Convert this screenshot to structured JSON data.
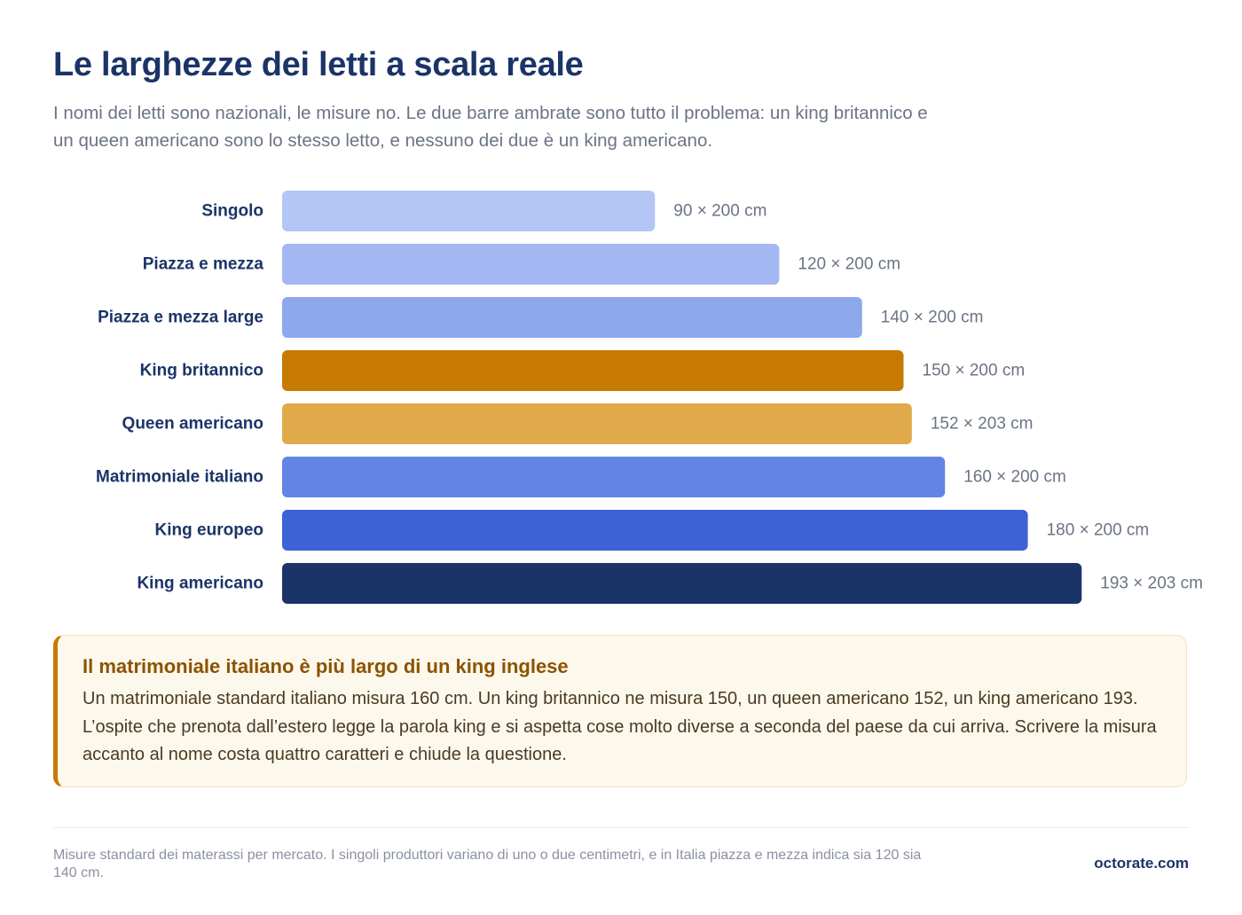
{
  "header": {
    "title": "Le larghezze dei letti a scala reale",
    "subtitle": "I nomi dei letti sono nazionali, le misure no. Le due barre ambrate sono tutto il problema: un king britannico e un queen americano sono lo stesso letto, e nessuno dei due è un king americano."
  },
  "chart_data": {
    "type": "bar",
    "orientation": "horizontal",
    "title": "",
    "xlabel": "",
    "ylabel": "",
    "xlim": [
      0,
      193
    ],
    "grid": false,
    "categories": [
      "Singolo",
      "Piazza e mezza",
      "Piazza e mezza large",
      "King britannico",
      "Queen americano",
      "Matrimoniale italiano",
      "King europeo",
      "King americano"
    ],
    "values": [
      90,
      120,
      140,
      150,
      152,
      160,
      180,
      193
    ],
    "lengths": [
      200,
      200,
      200,
      200,
      203,
      200,
      200,
      203
    ],
    "value_labels": [
      "90 × 200 cm",
      "120 × 200 cm",
      "140 × 200 cm",
      "150 × 200 cm",
      "152 × 203 cm",
      "160 × 200 cm",
      "180 × 200 cm",
      "193 × 203 cm"
    ],
    "colors": [
      "#b4c6f5",
      "#a3b8f2",
      "#8ea8ee",
      "#c77a00",
      "#e0aa4a",
      "#6284e4",
      "#3c63d6",
      "#1b3468"
    ]
  },
  "callout": {
    "title": "Il matrimoniale italiano è più largo di un king inglese",
    "body": "Un matrimoniale standard italiano misura 160 cm. Un king britannico ne misura 150, un queen americano 152, un king americano 193. L’ospite che prenota dall’estero legge la parola king e si aspetta cose molto diverse a seconda del paese da cui arriva. Scrivere la misura accanto al nome costa quattro caratteri e chiude la questione."
  },
  "footer": {
    "note": "Misure standard dei materassi per mercato. I singoli produttori variano di uno o due centimetri, e in Italia piazza e mezza indica sia 120 sia 140 cm.",
    "brand": "octorate.com"
  }
}
